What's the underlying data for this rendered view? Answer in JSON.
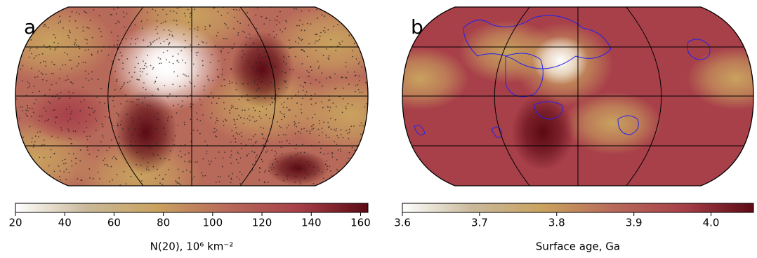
{
  "colormap": [
    "#ffffff",
    "#c9b99a",
    "#c9a25f",
    "#b86a5a",
    "#a8404a",
    "#5c0a14"
  ],
  "panels": [
    {
      "label": "a",
      "colorbar": {
        "label": "N(20), 10⁶ km⁻²",
        "lim": [
          20,
          163
        ],
        "ticks": [
          20,
          40,
          60,
          80,
          100,
          120,
          140,
          160
        ]
      }
    },
    {
      "label": "b",
      "colorbar": {
        "label": "Surface age, Ga",
        "lim": [
          3.6,
          4.055
        ],
        "ticks": [
          3.6,
          3.7,
          3.8,
          3.9,
          {
            "value": 4.0,
            "label": "4.0"
          }
        ]
      }
    }
  ]
}
